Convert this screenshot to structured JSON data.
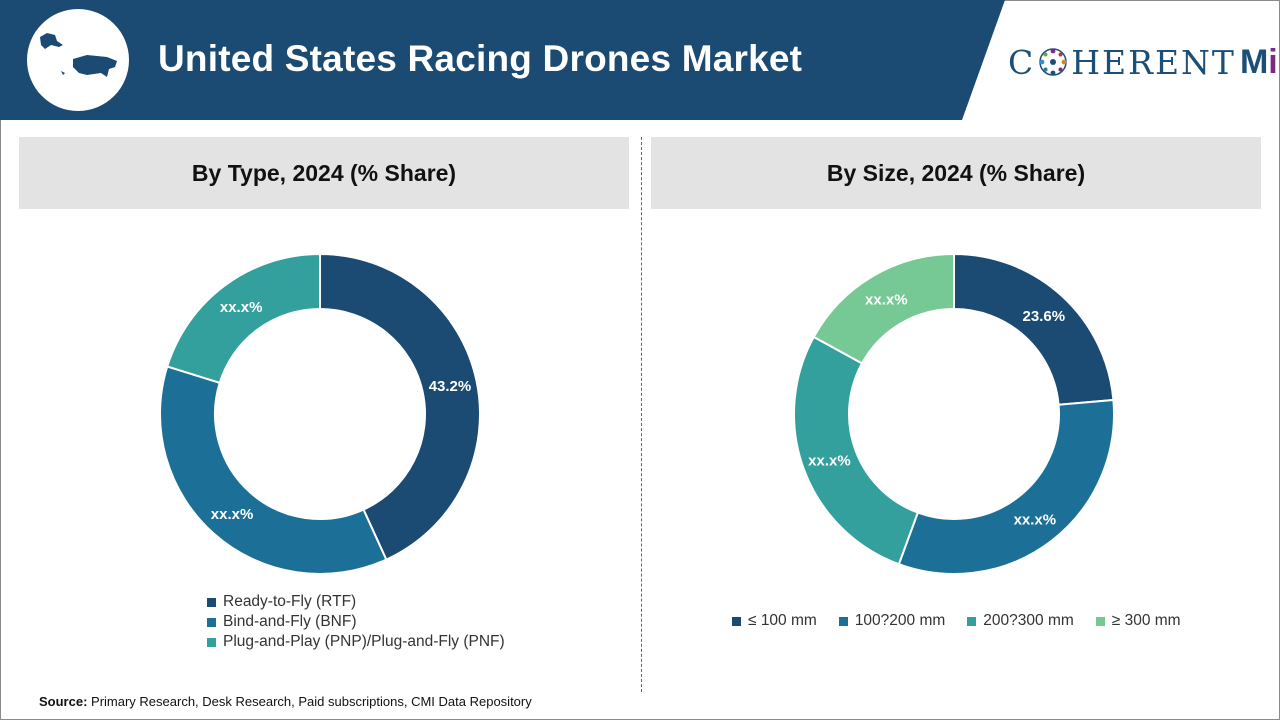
{
  "header": {
    "title": "United States Racing Drones Market",
    "logo_text_left": "C",
    "logo_text_mid": "HERENT",
    "logo_text_m": "M",
    "logo_text_i": "i"
  },
  "colors": {
    "header_bg": "#1b4a72",
    "panel_bg": "#e3e3e3",
    "series": [
      "#1b4a72",
      "#1c6f97",
      "#33a09d",
      "#76c895"
    ]
  },
  "chart_data": [
    {
      "type": "pie",
      "subtype": "donut",
      "title": "By Type, 2024 (% Share)",
      "categories": [
        "Ready-to-Fly (RTF)",
        "Bind-and-Fly (BNF)",
        "Plug-and-Play (PNP)/Plug-and-Fly (PNF)"
      ],
      "values": [
        43.2,
        36.6,
        20.2
      ],
      "labels": [
        "43.2%",
        "xx.x%",
        "xx.x%"
      ],
      "legend_position": "bottom-left"
    },
    {
      "type": "pie",
      "subtype": "donut",
      "title": "By Size, 2024 (% Share)",
      "categories": [
        "≤ 100 mm",
        "100?200 mm",
        "200?300 mm",
        "≥ 300 mm"
      ],
      "values": [
        23.6,
        32.0,
        27.4,
        17.0
      ],
      "labels": [
        "23.6%",
        "xx.x%",
        "xx.x%",
        "xx.x%"
      ],
      "legend_position": "bottom"
    }
  ],
  "source": {
    "label": "Source:",
    "text": "Primary Research, Desk Research, Paid subscriptions, CMI Data Repository"
  }
}
